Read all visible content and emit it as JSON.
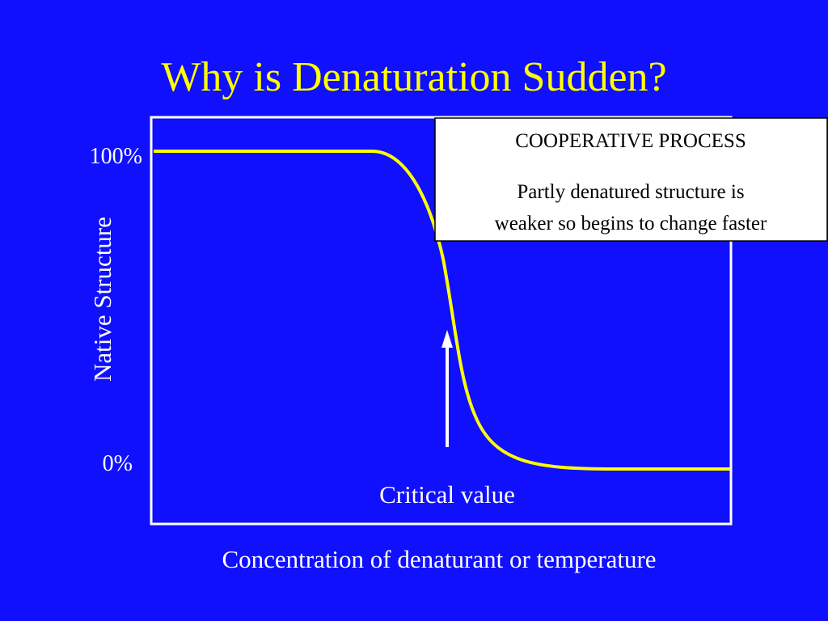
{
  "title": "Why is Denaturation Sudden?",
  "graph": {
    "y_axis_title": "Native Structure",
    "y_top_label": "100%",
    "y_bottom_label": "0%",
    "x_axis_title": "Concentration of denaturant or temperature",
    "arrow_label": "Critical value"
  },
  "callout": {
    "heading": "COOPERATIVE PROCESS",
    "lines": [
      "Partly denatured structure is",
      "weaker so begins to change faster"
    ]
  }
}
